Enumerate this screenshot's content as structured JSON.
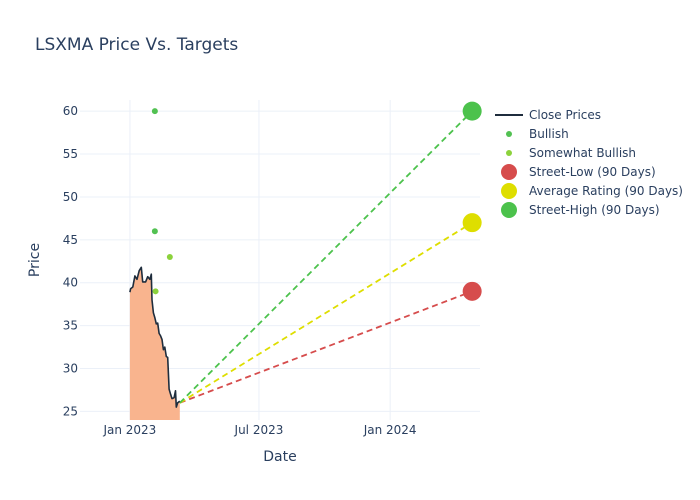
{
  "chart_data": {
    "type": "line",
    "title": "LSXMA Price Vs. Targets",
    "xlabel": "Date",
    "ylabel": "Price",
    "x_ticks": [
      "Jan 2023",
      "Jul 2023",
      "Jan 2024"
    ],
    "y_ticks": [
      25,
      30,
      35,
      40,
      45,
      50,
      55,
      60
    ],
    "xlim": [
      "2022-10-23",
      "2024-05-06"
    ],
    "ylim": [
      24,
      61.3
    ],
    "grid": true,
    "legend_position": "right",
    "legend": [
      {
        "label": "Close Prices",
        "symbol": "line",
        "color": "#1f2d3d"
      },
      {
        "label": "Bullish",
        "symbol": "small-dot",
        "color": "#52c152"
      },
      {
        "label": "Somewhat Bullish",
        "symbol": "small-dot",
        "color": "#8cd23c"
      },
      {
        "label": "Street-Low (90 Days)",
        "symbol": "large-dot",
        "color": "#d64c4c"
      },
      {
        "label": "Average Rating (90 Days)",
        "symbol": "large-dot",
        "color": "#dede00"
      },
      {
        "label": "Street-High (90 Days)",
        "symbol": "large-dot",
        "color": "#4cc24c"
      }
    ],
    "close_prices": {
      "color": "#1f2d3d",
      "fill_color": "#f9b48e",
      "points": [
        [
          "2023-01-01",
          38.9
        ],
        [
          "2023-01-02",
          39.3
        ],
        [
          "2023-01-05",
          39.5
        ],
        [
          "2023-01-08",
          40.8
        ],
        [
          "2023-01-11",
          40.4
        ],
        [
          "2023-01-14",
          41.4
        ],
        [
          "2023-01-17",
          41.8
        ],
        [
          "2023-01-19",
          40.1
        ],
        [
          "2023-01-23",
          40.1
        ],
        [
          "2023-01-26",
          40.7
        ],
        [
          "2023-01-29",
          40.4
        ],
        [
          "2023-01-31",
          41.0
        ],
        [
          "2023-02-01",
          38.0
        ],
        [
          "2023-02-03",
          36.5
        ],
        [
          "2023-02-05",
          35.9
        ],
        [
          "2023-02-07",
          35.2
        ],
        [
          "2023-02-09",
          35.3
        ],
        [
          "2023-02-11",
          34.1
        ],
        [
          "2023-02-13",
          33.8
        ],
        [
          "2023-02-15",
          33.4
        ],
        [
          "2023-02-17",
          32.2
        ],
        [
          "2023-02-19",
          32.5
        ],
        [
          "2023-02-21",
          31.4
        ],
        [
          "2023-02-23",
          31.3
        ],
        [
          "2023-02-25",
          27.6
        ],
        [
          "2023-02-27",
          27.0
        ],
        [
          "2023-03-01",
          26.5
        ],
        [
          "2023-03-04",
          26.6
        ],
        [
          "2023-03-06",
          27.4
        ],
        [
          "2023-03-07",
          25.5
        ],
        [
          "2023-03-09",
          26.0
        ],
        [
          "2023-03-12",
          26.2
        ]
      ]
    },
    "bullish": {
      "color": "#52c152",
      "points": [
        [
          "2023-02-05",
          60
        ],
        [
          "2023-02-05",
          46
        ]
      ]
    },
    "somewhat_bullish": {
      "color": "#8cd23c",
      "points": [
        [
          "2023-02-26",
          43
        ],
        [
          "2023-02-06",
          39
        ]
      ]
    },
    "targets": [
      {
        "name": "Street-Low (90 Days)",
        "color": "#d64c4c",
        "start": [
          "2023-03-12",
          26.0
        ],
        "end": [
          "2024-04-25",
          39
        ]
      },
      {
        "name": "Average Rating (90 Days)",
        "color": "#dede00",
        "start": [
          "2023-03-12",
          26.0
        ],
        "end": [
          "2024-04-25",
          47
        ]
      },
      {
        "name": "Street-High (90 Days)",
        "color": "#4cc24c",
        "start": [
          "2023-03-12",
          26.0
        ],
        "end": [
          "2024-04-25",
          60
        ]
      }
    ]
  }
}
